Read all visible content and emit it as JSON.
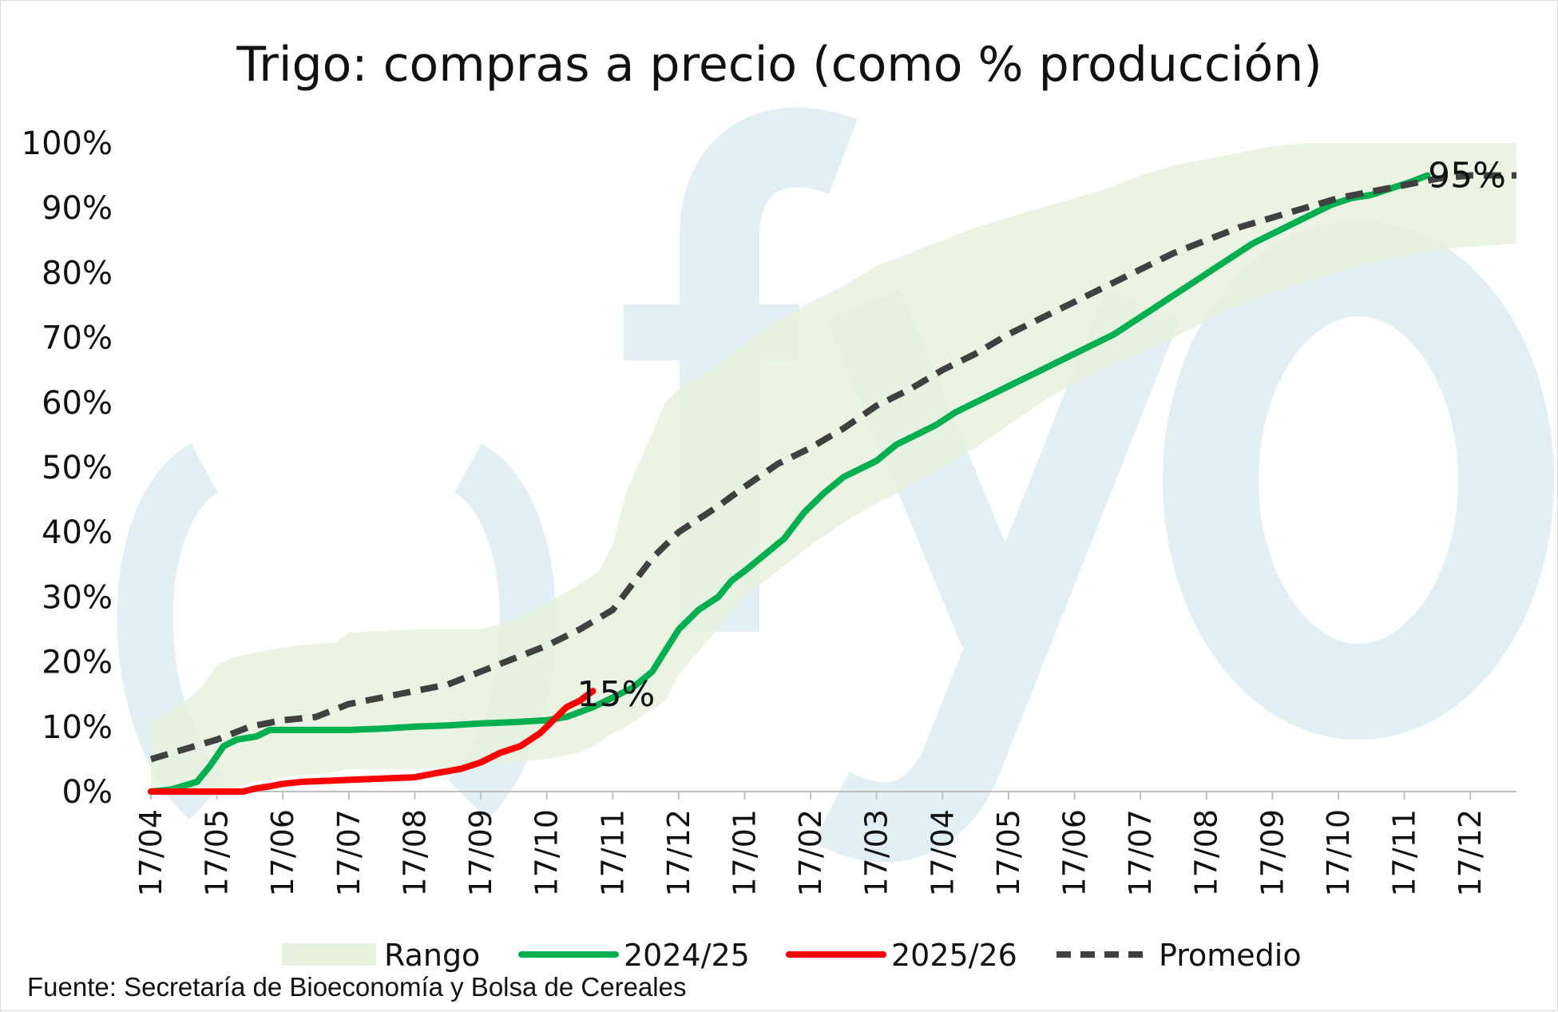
{
  "chart_data": {
    "type": "line",
    "title": "Trigo: compras a precio (como % producción)",
    "y_ticks": [
      "0%",
      "10%",
      "20%",
      "30%",
      "40%",
      "50%",
      "60%",
      "70%",
      "80%",
      "90%",
      "100%"
    ],
    "ylim": [
      0,
      100
    ],
    "x_ticks": [
      "17/04",
      "17/05",
      "17/06",
      "17/07",
      "17/08",
      "17/09",
      "17/10",
      "17/11",
      "17/12",
      "17/01",
      "17/02",
      "17/03",
      "17/04",
      "17/05",
      "17/06",
      "17/07",
      "17/08",
      "17/09",
      "17/10",
      "17/11",
      "17/12"
    ],
    "xlim": [
      0,
      20.7
    ],
    "grid": false,
    "legend_position": "bottom",
    "range": {
      "name": "Rango",
      "color": "#e8f1de",
      "x": [
        0,
        0.3,
        0.6,
        0.8,
        1.0,
        1.2,
        1.6,
        2.2,
        2.8,
        3.0,
        4.0,
        5.0,
        5.5,
        6.0,
        6.5,
        6.8,
        7.0,
        7.2,
        7.5,
        7.8,
        8.0,
        8.5,
        9.0,
        9.5,
        10.0,
        10.5,
        11.0,
        11.5,
        12.0,
        12.5,
        13.0,
        13.5,
        14.0,
        14.5,
        15.0,
        15.5,
        16.0,
        16.5,
        17.0,
        17.5,
        18.0,
        18.5,
        19.0,
        19.5,
        20.0,
        20.7
      ],
      "upper": [
        11,
        12.5,
        14.5,
        16.5,
        19.5,
        20.5,
        21.5,
        22.5,
        23,
        24.5,
        25,
        25,
        26.5,
        29,
        32,
        34,
        38,
        46,
        53,
        60,
        62,
        65,
        69,
        72.5,
        75.5,
        78,
        81,
        83,
        85,
        87,
        88.5,
        90,
        91.5,
        93,
        95,
        96.5,
        97.5,
        98.5,
        99.5,
        100,
        100,
        100,
        100,
        100,
        100,
        100
      ],
      "lower": [
        0,
        0,
        0,
        0,
        0,
        0.5,
        1.5,
        2.5,
        3,
        3.5,
        3.5,
        4,
        4.5,
        5,
        6,
        7.5,
        9,
        10,
        12,
        14,
        18,
        24,
        30,
        34,
        38,
        41.5,
        44.5,
        47,
        50,
        53,
        56.5,
        60,
        63,
        65.5,
        67.5,
        70,
        72.5,
        75,
        77,
        78.5,
        80,
        81.5,
        82.5,
        83.5,
        84,
        84.5
      ]
    },
    "series": [
      {
        "name": "2024/25",
        "color": "#00b050",
        "dash": false,
        "x": [
          0,
          0.3,
          0.7,
          0.9,
          1.1,
          1.3,
          1.6,
          1.8,
          2.2,
          3.0,
          3.5,
          4.0,
          4.5,
          5.0,
          5.5,
          6.0,
          6.3,
          6.7,
          7.0,
          7.3,
          7.6,
          8.0,
          8.3,
          8.6,
          8.8,
          9.0,
          9.3,
          9.6,
          9.9,
          10.2,
          10.5,
          10.8,
          11.0,
          11.3,
          11.6,
          11.9,
          12.2,
          12.5,
          12.8,
          13.1,
          13.4,
          13.7,
          14.0,
          14.3,
          14.6,
          14.9,
          15.2,
          15.5,
          15.8,
          16.1,
          16.4,
          16.7,
          17.0,
          17.3,
          17.6,
          17.9,
          18.2,
          18.5,
          18.8,
          19.1,
          19.35
        ],
        "y": [
          0,
          0.3,
          1.5,
          4,
          7,
          8,
          8.5,
          9.5,
          9.5,
          9.5,
          9.7,
          10,
          10.2,
          10.5,
          10.7,
          11,
          11.5,
          13,
          14.5,
          16,
          18.5,
          25,
          28,
          30,
          32.5,
          34,
          36.5,
          39,
          43,
          46,
          48.5,
          50,
          51,
          53.5,
          55,
          56.5,
          58.5,
          60,
          61.5,
          63,
          64.5,
          66,
          67.5,
          69,
          70.5,
          72.5,
          74.5,
          76.5,
          78.5,
          80.5,
          82.5,
          84.5,
          86,
          87.5,
          89,
          90.5,
          91.5,
          92,
          93,
          94,
          95
        ]
      },
      {
        "name": "2025/26",
        "color": "#ff0000",
        "dash": false,
        "x": [
          0,
          0.5,
          1.0,
          1.4,
          1.6,
          1.8,
          2.0,
          2.3,
          3.0,
          3.5,
          4.0,
          4.3,
          4.7,
          5.0,
          5.3,
          5.6,
          5.9,
          6.1,
          6.3,
          6.5,
          6.7
        ],
        "y": [
          0,
          0,
          0,
          0,
          0.5,
          0.8,
          1.2,
          1.5,
          1.8,
          2,
          2.2,
          2.8,
          3.5,
          4.5,
          6,
          7,
          9,
          11,
          13,
          14,
          15.5
        ]
      },
      {
        "name": "Promedio",
        "color": "#404040",
        "dash": true,
        "x": [
          0,
          0.5,
          1.0,
          1.5,
          2.0,
          2.5,
          3.0,
          3.5,
          4.0,
          4.5,
          5.0,
          5.5,
          6.0,
          6.5,
          7.0,
          7.3,
          7.6,
          8.0,
          8.3,
          8.6,
          9.0,
          9.5,
          10.0,
          10.5,
          11.0,
          11.5,
          12.0,
          12.5,
          13.0,
          13.5,
          14.0,
          14.5,
          15.0,
          15.5,
          16.0,
          16.5,
          17.0,
          17.5,
          18.0,
          18.5,
          19.0,
          19.5,
          20.0,
          20.7
        ],
        "y": [
          5,
          6.5,
          8,
          10,
          11,
          11.5,
          13.5,
          14.5,
          15.5,
          16.5,
          18.5,
          20.5,
          22.5,
          25,
          28,
          32,
          36,
          40,
          42,
          44,
          47,
          50.5,
          53,
          56,
          59.5,
          62,
          65,
          67.5,
          70.5,
          73,
          75.5,
          78,
          80.5,
          83,
          85,
          87,
          88.5,
          90,
          91.5,
          92.5,
          93.5,
          94.5,
          95,
          95
        ]
      }
    ],
    "annotations": [
      {
        "text": "15%",
        "x": 7.05,
        "y": 15
      },
      {
        "text": "95%",
        "x": 19.95,
        "y": 95
      }
    ],
    "legend": [
      "Rango",
      "2024/25",
      "2025/26",
      "Promedio"
    ]
  },
  "watermark": {
    "text": "(fyo",
    "color": "#e2f0f4"
  },
  "source": "Fuente: Secretaría de Bioeconomía y Bolsa de Cereales"
}
